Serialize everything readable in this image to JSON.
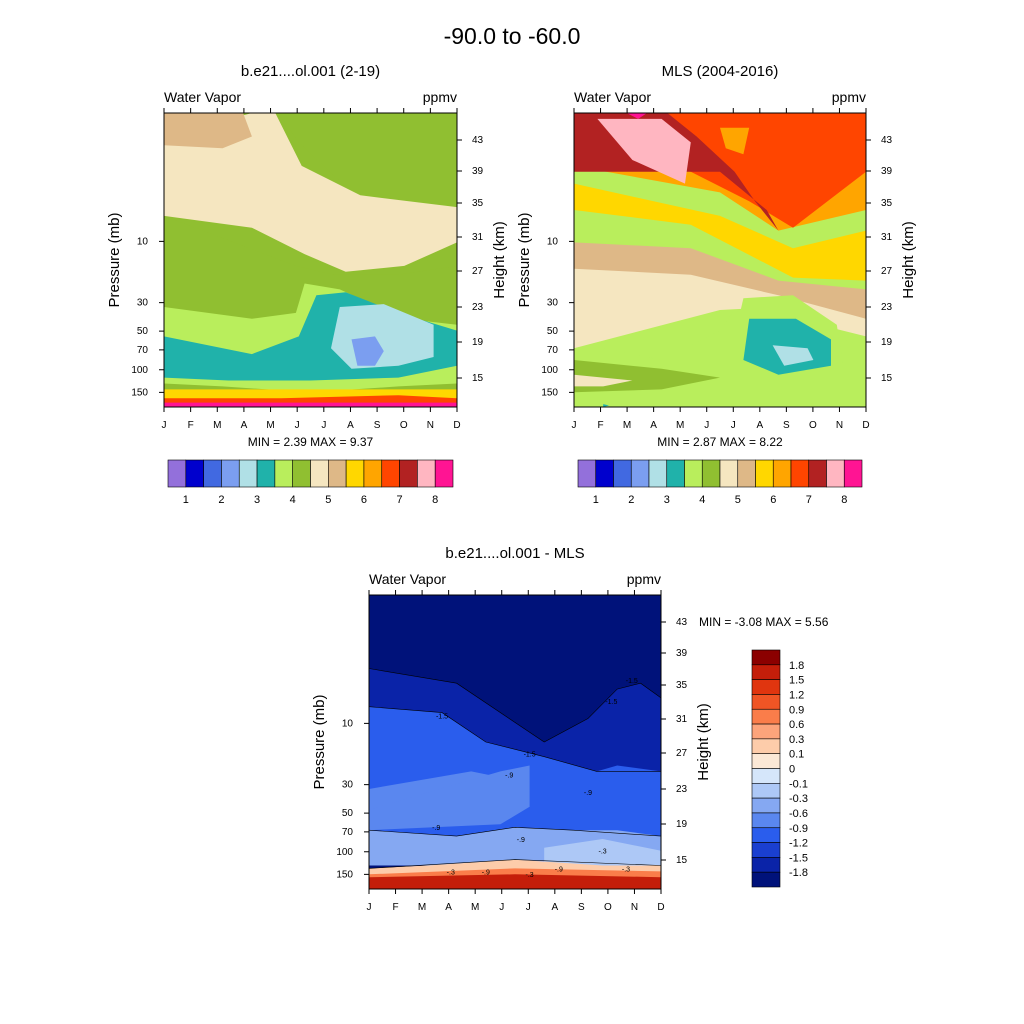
{
  "figure_title": "-90.0 to -60.0",
  "chart_data": [
    {
      "type": "heatmap",
      "title": "b.e21....ol.001 (2-19)",
      "left_label": "Water Vapor",
      "right_label": "ppmv",
      "ylabel": "Pressure (mb)",
      "ylabel_right": "Height (km)",
      "x": [
        "J",
        "F",
        "M",
        "A",
        "M",
        "J",
        "J",
        "A",
        "S",
        "O",
        "N",
        "D"
      ],
      "pressure_ticks": [
        "10",
        "30",
        "50",
        "70",
        "100",
        "150"
      ],
      "pressure_values": [
        10,
        30,
        50,
        70,
        100,
        150
      ],
      "ylim_pressure": [
        200,
        1
      ],
      "height_ticks": [
        "15",
        "19",
        "23",
        "27",
        "31",
        "35",
        "39",
        "43"
      ],
      "stats_text": "MIN =   2.39  MAX =   9.37",
      "colorbar_labels": [
        "1",
        "2",
        "3",
        "4",
        "5",
        "6",
        "7",
        "8"
      ],
      "colorbar_colors": [
        "#9370db",
        "#0000cd",
        "#4169e1",
        "#7b9ef0",
        "#b0e0e6",
        "#20b2aa",
        "#b9ee5c",
        "#90bf31",
        "#f5e6c0",
        "#deb887",
        "#ffd700",
        "#ffa500",
        "#ff4500",
        "#b22222",
        "#ffb6c1",
        "#ff1493"
      ]
    },
    {
      "type": "heatmap",
      "title": "MLS (2004-2016)",
      "left_label": "Water Vapor",
      "right_label": "ppmv",
      "ylabel": "Pressure (mb)",
      "ylabel_right": "Height (km)",
      "x": [
        "J",
        "F",
        "M",
        "A",
        "M",
        "J",
        "J",
        "A",
        "S",
        "O",
        "N",
        "D"
      ],
      "pressure_ticks": [
        "10",
        "30",
        "50",
        "70",
        "100",
        "150"
      ],
      "pressure_values": [
        10,
        30,
        50,
        70,
        100,
        150
      ],
      "ylim_pressure": [
        200,
        1
      ],
      "height_ticks": [
        "15",
        "19",
        "23",
        "27",
        "31",
        "35",
        "39",
        "43"
      ],
      "stats_text": "MIN =   2.87  MAX =   8.22",
      "colorbar_labels": [
        "1",
        "2",
        "3",
        "4",
        "5",
        "6",
        "7",
        "8"
      ],
      "colorbar_colors": [
        "#9370db",
        "#0000cd",
        "#4169e1",
        "#7b9ef0",
        "#b0e0e6",
        "#20b2aa",
        "#b9ee5c",
        "#90bf31",
        "#f5e6c0",
        "#deb887",
        "#ffd700",
        "#ffa500",
        "#ff4500",
        "#b22222",
        "#ffb6c1",
        "#ff1493"
      ]
    },
    {
      "type": "heatmap",
      "title": "b.e21....ol.001 - MLS",
      "left_label": "Water Vapor",
      "right_label": "ppmv",
      "ylabel": "Pressure (mb)",
      "ylabel_right": "Height (km)",
      "x": [
        "J",
        "F",
        "M",
        "A",
        "M",
        "J",
        "J",
        "A",
        "S",
        "O",
        "N",
        "D"
      ],
      "pressure_ticks": [
        "10",
        "30",
        "50",
        "70",
        "100",
        "150"
      ],
      "pressure_values": [
        10,
        30,
        50,
        70,
        100,
        150
      ],
      "ylim_pressure": [
        200,
        1
      ],
      "height_ticks": [
        "15",
        "19",
        "23",
        "27",
        "31",
        "35",
        "39",
        "43"
      ],
      "stats_text": "MIN =  -3.08  MAX =   5.56",
      "colorbar_labels": [
        "1.8",
        "1.5",
        "1.2",
        "0.9",
        "0.6",
        "0.3",
        "0.1",
        "0",
        "-0.1",
        "-0.3",
        "-0.6",
        "-0.9",
        "-1.2",
        "-1.5",
        "-1.8"
      ],
      "colorbar_colors": [
        "#8b0000",
        "#c41e0a",
        "#e0350f",
        "#f05525",
        "#fa7d4a",
        "#fca47b",
        "#fdccaa",
        "#fbe8d6",
        "#d5e6fa",
        "#adc8f6",
        "#85a8f2",
        "#5a87ef",
        "#2a5ded",
        "#1a3fd0",
        "#0a23a8",
        "#00127a"
      ],
      "contour_labels": [
        "-1.5",
        "-1.5",
        "-1.5",
        "-1.5",
        "-.9",
        "-.9",
        "-.9",
        "-.9",
        "-.9",
        "-.9",
        "-.3",
        "-.3",
        "-.3",
        "-.3"
      ]
    }
  ]
}
